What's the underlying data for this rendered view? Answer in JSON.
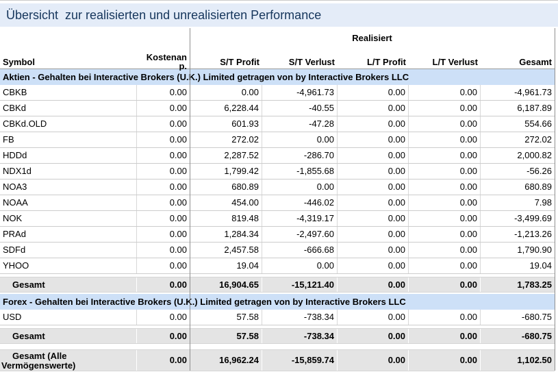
{
  "title": "Übersicht  zur realisierten und unrealisierten Performance",
  "colors": {
    "title_bar_bg": "#e4ecf8",
    "title_text": "#16365c",
    "section_header_bg": "#cde0f7",
    "total_row_bg": "#e4e4e4"
  },
  "table": {
    "group_header": "Realisiert",
    "columns": [
      "Symbol",
      "Kostenanp.",
      "S/T Profit",
      "S/T Verlust",
      "L/T Profit",
      "L/T Verlust",
      "Gesamt"
    ],
    "kosten_lines": [
      "Kostenan",
      "p."
    ],
    "sections": [
      {
        "header": "Aktien - Gehalten bei Interactive Brokers (U.K.) Limited getragen von by Interactive Brokers LLC",
        "rows": [
          {
            "symbol": "CBKB",
            "values": [
              "0.00",
              "0.00",
              "-4,961.73",
              "0.00",
              "0.00",
              "-4,961.73"
            ]
          },
          {
            "symbol": "CBKd",
            "values": [
              "0.00",
              "6,228.44",
              "-40.55",
              "0.00",
              "0.00",
              "6,187.89"
            ]
          },
          {
            "symbol": "CBKd.OLD",
            "values": [
              "0.00",
              "601.93",
              "-47.28",
              "0.00",
              "0.00",
              "554.66"
            ]
          },
          {
            "symbol": "FB",
            "values": [
              "0.00",
              "272.02",
              "0.00",
              "0.00",
              "0.00",
              "272.02"
            ]
          },
          {
            "symbol": "HDDd",
            "values": [
              "0.00",
              "2,287.52",
              "-286.70",
              "0.00",
              "0.00",
              "2,000.82"
            ]
          },
          {
            "symbol": "NDX1d",
            "values": [
              "0.00",
              "1,799.42",
              "-1,855.68",
              "0.00",
              "0.00",
              "-56.26"
            ]
          },
          {
            "symbol": "NOA3",
            "values": [
              "0.00",
              "680.89",
              "0.00",
              "0.00",
              "0.00",
              "680.89"
            ]
          },
          {
            "symbol": "NOAA",
            "values": [
              "0.00",
              "454.00",
              "-446.02",
              "0.00",
              "0.00",
              "7.98"
            ]
          },
          {
            "symbol": "NOK",
            "values": [
              "0.00",
              "819.48",
              "-4,319.17",
              "0.00",
              "0.00",
              "-3,499.69"
            ]
          },
          {
            "symbol": "PRAd",
            "values": [
              "0.00",
              "1,284.34",
              "-2,497.60",
              "0.00",
              "0.00",
              "-1,213.26"
            ]
          },
          {
            "symbol": "SDFd",
            "values": [
              "0.00",
              "2,457.58",
              "-666.68",
              "0.00",
              "0.00",
              "1,790.90"
            ]
          },
          {
            "symbol": "YHOO",
            "values": [
              "0.00",
              "19.04",
              "0.00",
              "0.00",
              "0.00",
              "19.04"
            ]
          }
        ],
        "total": {
          "label": "Gesamt",
          "values": [
            "0.00",
            "16,904.65",
            "-15,121.40",
            "0.00",
            "0.00",
            "1,783.25"
          ]
        }
      },
      {
        "header": "Forex - Gehalten bei Interactive Brokers (U.K.) Limited getragen von by Interactive Brokers LLC",
        "rows": [
          {
            "symbol": "USD",
            "values": [
              "0.00",
              "57.58",
              "-738.34",
              "0.00",
              "0.00",
              "-680.75"
            ]
          }
        ],
        "total": {
          "label": "Gesamt",
          "values": [
            "0.00",
            "57.58",
            "-738.34",
            "0.00",
            "0.00",
            "-680.75"
          ]
        }
      }
    ],
    "grand_total": {
      "label_lines": [
        "Gesamt (Alle",
        "Vermögenswerte)"
      ],
      "values": [
        "0.00",
        "16,962.24",
        "-15,859.74",
        "0.00",
        "0.00",
        "1,102.50"
      ]
    }
  }
}
